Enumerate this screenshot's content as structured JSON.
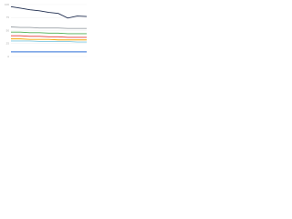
{
  "chart_data": {
    "type": "line",
    "categories": [
      null,
      null,
      null,
      null,
      null,
      null,
      null,
      null,
      null
    ],
    "series": [
      {
        "color": "#1f2d4f",
        "values": [
          96,
          93,
          90,
          88,
          85,
          83,
          74,
          78,
          77
        ]
      },
      {
        "color": "#9aa0a6",
        "values": [
          57,
          56,
          56,
          55,
          55,
          55,
          54,
          54,
          54
        ]
      },
      {
        "color": "#4caf50",
        "values": [
          47,
          47,
          46,
          46,
          45,
          45,
          44,
          44,
          44
        ]
      },
      {
        "color": "#e53935",
        "values": [
          40,
          40,
          39,
          39,
          38,
          38,
          37,
          37,
          37
        ]
      },
      {
        "color": "#f4a300",
        "values": [
          34,
          34,
          33,
          33,
          33,
          32,
          32,
          32,
          32
        ]
      },
      {
        "color": "#7ec8e3",
        "values": [
          30,
          30,
          30,
          29,
          29,
          29,
          29,
          28,
          28
        ]
      },
      {
        "color": "#2f6fd6",
        "values": [
          9,
          9,
          9,
          9,
          9,
          9,
          9,
          9,
          9
        ]
      }
    ],
    "ylim": [
      0,
      100
    ],
    "yticks": [
      0,
      25,
      50,
      75,
      100
    ],
    "grid": true
  }
}
